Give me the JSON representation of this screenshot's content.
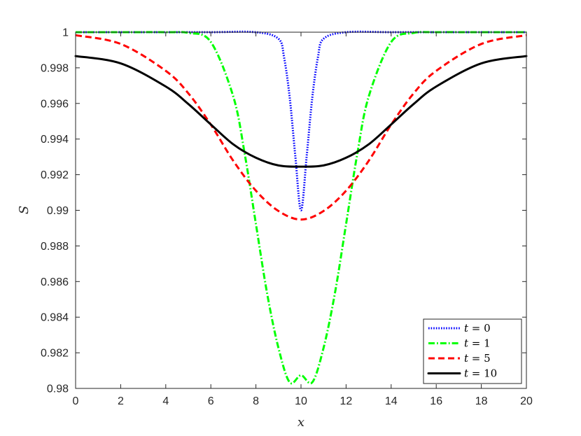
{
  "chart_data": {
    "type": "line",
    "xlabel": "x",
    "ylabel": "S",
    "xlim": [
      0,
      20
    ],
    "ylim": [
      0.98,
      1.0
    ],
    "xticks": [
      0,
      2,
      4,
      6,
      8,
      10,
      12,
      14,
      16,
      18,
      20
    ],
    "xtick_labels": [
      "0",
      "2",
      "4",
      "6",
      "8",
      "10",
      "12",
      "14",
      "16",
      "18",
      "20"
    ],
    "yticks": [
      0.98,
      0.982,
      0.984,
      0.986,
      0.988,
      0.99,
      0.992,
      0.994,
      0.996,
      0.998,
      1.0
    ],
    "ytick_labels": [
      "0.98",
      "0.982",
      "0.984",
      "0.986",
      "0.988",
      "0.99",
      "0.992",
      "0.994",
      "0.996",
      "0.998",
      "1"
    ],
    "grid": false,
    "legend_position": "bottom-right",
    "series": [
      {
        "name": "t = 0",
        "var": "t",
        "value": "0",
        "color": "#0000ff",
        "style": "dotted",
        "x": [
          0,
          2,
          4,
          6,
          8,
          9,
          9.25,
          9.5,
          9.75,
          10,
          10.25,
          10.5,
          10.75,
          11,
          12,
          14,
          16,
          18,
          20
        ],
        "y": [
          1.0,
          1.0,
          1.0,
          1.0,
          1.0,
          0.99963,
          0.99858,
          0.99632,
          0.99301,
          0.99,
          0.99301,
          0.99632,
          0.99858,
          0.99963,
          1.0,
          1.0,
          1.0,
          1.0,
          1.0
        ]
      },
      {
        "name": "t = 1",
        "var": "t",
        "value": "1",
        "color": "#00ff00",
        "style": "dashdot",
        "x": [
          0,
          2,
          4,
          5,
          6,
          7,
          7.5,
          8,
          8.5,
          9,
          9.5,
          10,
          10.5,
          11,
          11.5,
          12,
          12.5,
          13,
          14,
          15,
          16,
          18,
          20
        ],
        "y": [
          1.0,
          1.0,
          1.0,
          0.99996,
          0.99945,
          0.99637,
          0.99319,
          0.98923,
          0.98531,
          0.98227,
          0.98034,
          0.98074,
          0.98034,
          0.98227,
          0.98531,
          0.98923,
          0.99319,
          0.99637,
          0.99945,
          0.99996,
          1.0,
          1.0,
          1.0
        ]
      },
      {
        "name": "t = 5",
        "var": "t",
        "value": "5",
        "color": "#ff0000",
        "style": "dashed",
        "x": [
          0,
          2,
          4,
          5,
          6,
          7,
          8,
          9,
          10,
          11,
          12,
          13,
          14,
          15,
          16,
          18,
          20
        ],
        "y": [
          0.99983,
          0.99934,
          0.99783,
          0.99657,
          0.99481,
          0.99277,
          0.9911,
          0.98996,
          0.98948,
          0.98996,
          0.9911,
          0.99277,
          0.99481,
          0.99657,
          0.99783,
          0.99934,
          0.99983
        ]
      },
      {
        "name": "t = 10",
        "var": "t",
        "value": "10",
        "color": "#000000",
        "style": "solid",
        "x": [
          0,
          2,
          4,
          5,
          6,
          7,
          8,
          9,
          10,
          11,
          12,
          13,
          14,
          15,
          16,
          18,
          20
        ],
        "y": [
          0.99866,
          0.99825,
          0.99695,
          0.99597,
          0.99482,
          0.9937,
          0.99295,
          0.99252,
          0.99245,
          0.99252,
          0.99295,
          0.9937,
          0.99482,
          0.99597,
          0.99695,
          0.99825,
          0.99866
        ]
      }
    ]
  }
}
